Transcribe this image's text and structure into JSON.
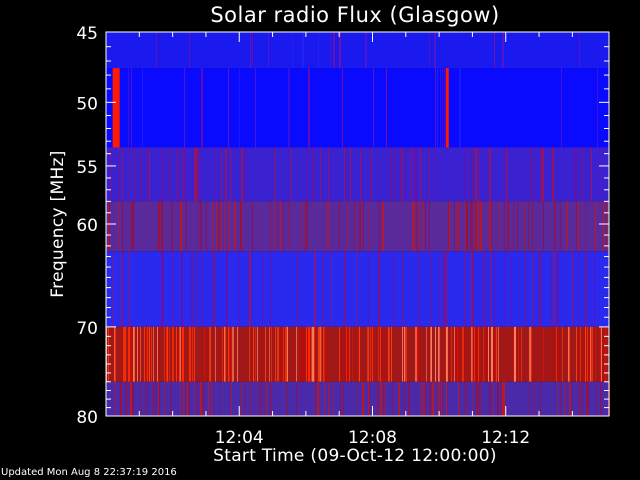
{
  "chart_data": {
    "type": "heatmap",
    "title": "Solar radio Flux (Glasgow)",
    "xlabel": "Start Time (09-Oct-12 12:00:00)",
    "ylabel": "Frequency [MHz]",
    "x_tick_labels": [
      "12:04",
      "12:08",
      "12:12"
    ],
    "x_ticks_minutes": [
      4,
      8,
      12
    ],
    "xlim_minutes": [
      0,
      15.1
    ],
    "y_tick_labels": [
      "45",
      "50",
      "55",
      "60",
      "70",
      "80"
    ],
    "y_ticks_mhz": [
      45,
      50,
      55,
      60,
      70,
      80
    ],
    "ylim_mhz": [
      45,
      80
    ],
    "y_scale": "log",
    "bands": [
      {
        "from_mhz": 45,
        "to_mhz": 47.5,
        "level": "low",
        "color": "#1a1aee"
      },
      {
        "from_mhz": 47.5,
        "to_mhz": 53.5,
        "level": "low",
        "color": "#0a0aff"
      },
      {
        "from_mhz": 53.5,
        "to_mhz": 58,
        "level": "low-medium",
        "color": "#3a22d0"
      },
      {
        "from_mhz": 58,
        "to_mhz": 62.5,
        "level": "medium",
        "color": "#5a2a9a"
      },
      {
        "from_mhz": 62.5,
        "to_mhz": 70,
        "level": "low-medium",
        "color": "#2a2aee"
      },
      {
        "from_mhz": 70,
        "to_mhz": 76,
        "level": "high",
        "color": "#a01818"
      },
      {
        "from_mhz": 76,
        "to_mhz": 80,
        "level": "medium",
        "color": "#4a2aa8"
      }
    ],
    "bursts": [
      {
        "time_minutes": 0.2,
        "from_mhz": 47.5,
        "to_mhz": 53.5
      },
      {
        "time_minutes": 10.2,
        "from_mhz": 47.5,
        "to_mhz": 53.5
      }
    ]
  },
  "footer": {
    "updated": "Updated Mon Aug  8 22:37:19 2016"
  },
  "colors": {
    "background": "#000000",
    "axes": "#ffffff",
    "low": "#0000ff",
    "high": "#ff2000"
  }
}
